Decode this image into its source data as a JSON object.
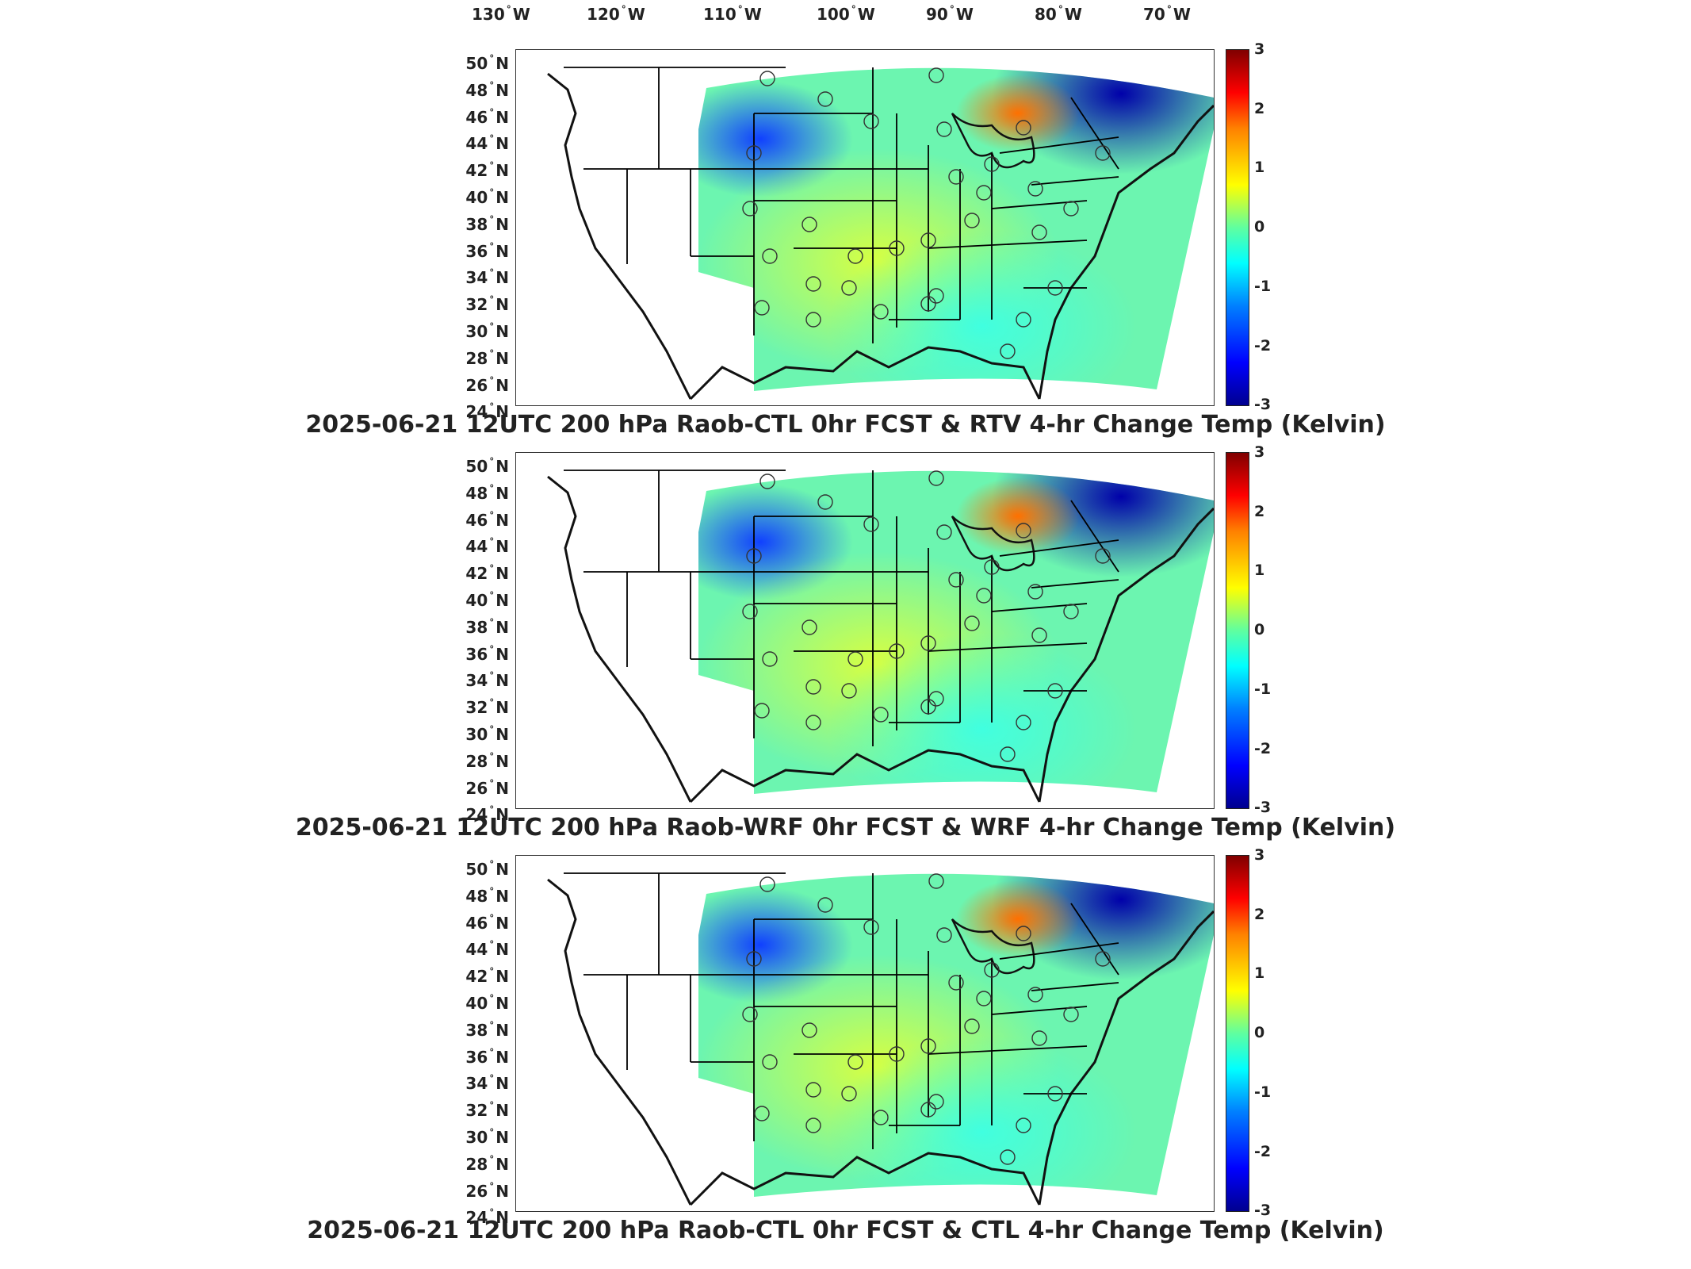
{
  "lon_labels": [
    {
      "num": "130",
      "hem": "W"
    },
    {
      "num": "120",
      "hem": "W"
    },
    {
      "num": "110",
      "hem": "W"
    },
    {
      "num": "100",
      "hem": "W"
    },
    {
      "num": "90",
      "hem": "W"
    },
    {
      "num": "80",
      "hem": "W"
    },
    {
      "num": "70",
      "hem": "W"
    }
  ],
  "lat_labels": [
    {
      "num": "50",
      "hem": "N"
    },
    {
      "num": "48",
      "hem": "N"
    },
    {
      "num": "46",
      "hem": "N"
    },
    {
      "num": "44",
      "hem": "N"
    },
    {
      "num": "42",
      "hem": "N"
    },
    {
      "num": "40",
      "hem": "N"
    },
    {
      "num": "38",
      "hem": "N"
    },
    {
      "num": "36",
      "hem": "N"
    },
    {
      "num": "34",
      "hem": "N"
    },
    {
      "num": "32",
      "hem": "N"
    },
    {
      "num": "30",
      "hem": "N"
    },
    {
      "num": "28",
      "hem": "N"
    },
    {
      "num": "26",
      "hem": "N"
    },
    {
      "num": "24",
      "hem": "N"
    }
  ],
  "colorbar_ticks": [
    "3",
    "2",
    "1",
    "0",
    "-1",
    "-2",
    "-3"
  ],
  "colorbar_range": [
    -3,
    3
  ],
  "colors": {
    "cold": "#0000aa",
    "neutral": "#7fffa0",
    "warm": "#ffee00",
    "hot": "#cc0000"
  },
  "panels": [
    {
      "title": "2025-06-21 12UTC 200 hPa Raob-CTL 0hr FCST & RTV 4-hr Change Temp (Kelvin)"
    },
    {
      "title": "2025-06-21 12UTC 200 hPa Raob-WRF 0hr FCST & WRF 4-hr Change Temp (Kelvin)"
    },
    {
      "title": "2025-06-21 12UTC 200 hPa Raob-CTL 0hr FCST & CTL 4-hr Change Temp (Kelvin)"
    }
  ]
}
